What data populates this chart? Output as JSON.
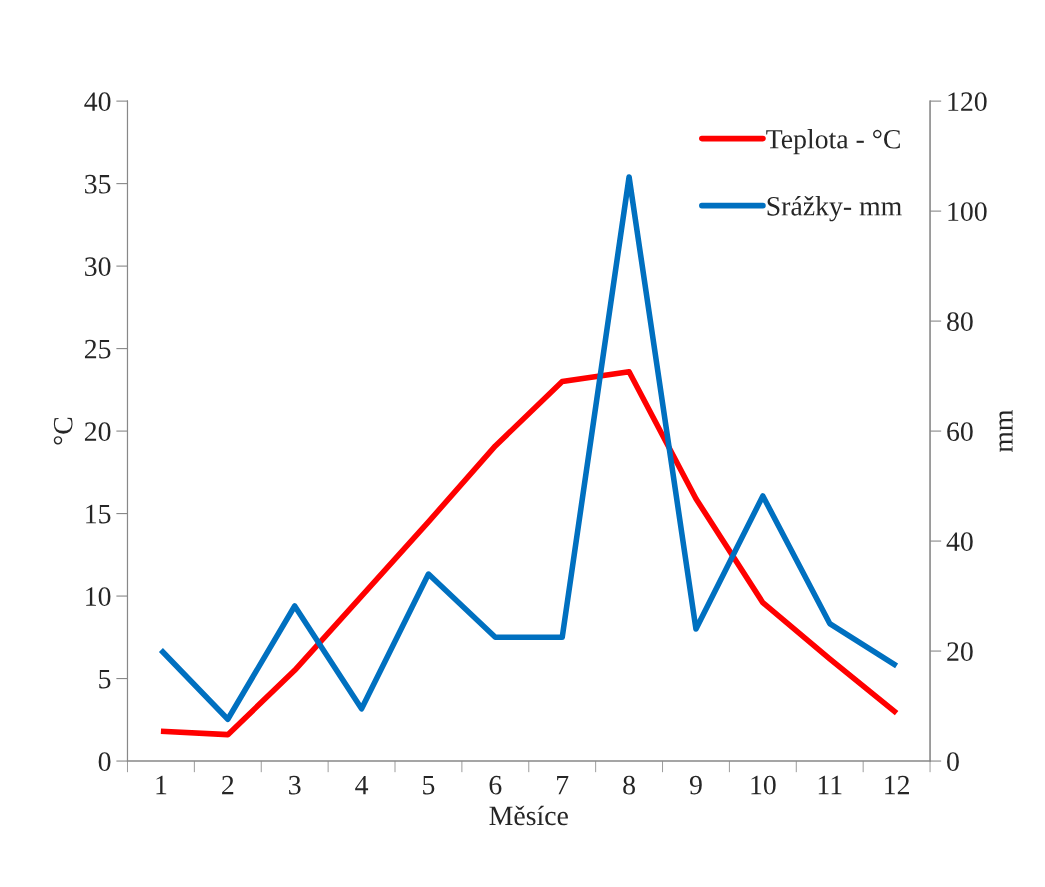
{
  "chart_data": {
    "type": "line",
    "xlabel": "Měsíce",
    "ylabel": "°C",
    "y2label": "mm",
    "categories": [
      "1",
      "2",
      "3",
      "4",
      "5",
      "6",
      "7",
      "8",
      "9",
      "10",
      "11",
      "12"
    ],
    "series": [
      {
        "name": "Teplota - °C",
        "color": "#ff0000",
        "values": [
          1.8,
          1.6,
          5.5,
          10.0,
          14.5,
          19.1,
          23.0,
          23.6,
          15.9,
          9.6,
          6.2,
          2.9
        ]
      },
      {
        "name": "Srážky- mm",
        "color": "#0070c0",
        "axis": "y2",
        "values": [
          20.2,
          7.6,
          28.2,
          9.5,
          34,
          22.5,
          22.5,
          106.2,
          24,
          48.2,
          25,
          17.3
        ]
      }
    ],
    "ylim": [
      0,
      40
    ],
    "yticks": [
      0,
      5,
      10,
      15,
      20,
      25,
      30,
      35,
      40
    ],
    "y2lim": [
      0,
      120
    ],
    "y2ticks": [
      0,
      20,
      40,
      60,
      80,
      100,
      120
    ],
    "legend": "top right",
    "grid": false,
    "marker": "none",
    "line_style": "solid"
  }
}
